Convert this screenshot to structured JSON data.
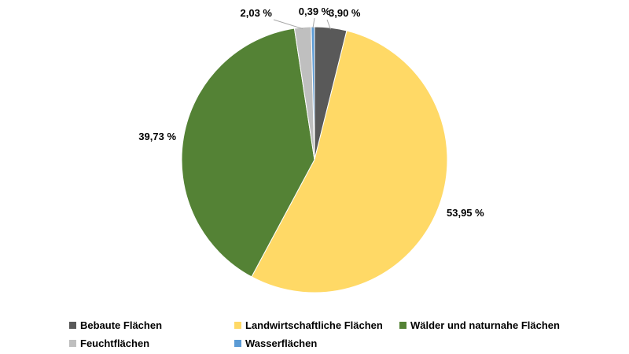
{
  "chart_data": {
    "type": "pie",
    "categories": [
      "Bebaute Flächen",
      "Landwirtschaftliche Flächen",
      "Wälder und naturnahe Flächen",
      "Feuchtflächen",
      "Wasserflächen"
    ],
    "values": [
      3.9,
      53.95,
      39.73,
      2.03,
      0.39
    ],
    "value_labels": [
      "3,90 %",
      "53,95 %",
      "39,73 %",
      "2,03 %",
      "0,39 %"
    ],
    "colors": [
      "#595959",
      "#ffd966",
      "#548235",
      "#bfbfbf",
      "#5b9bd5"
    ],
    "start_angle": "12 o'clock",
    "direction": "clockwise",
    "legend_position": "bottom",
    "title": ""
  }
}
